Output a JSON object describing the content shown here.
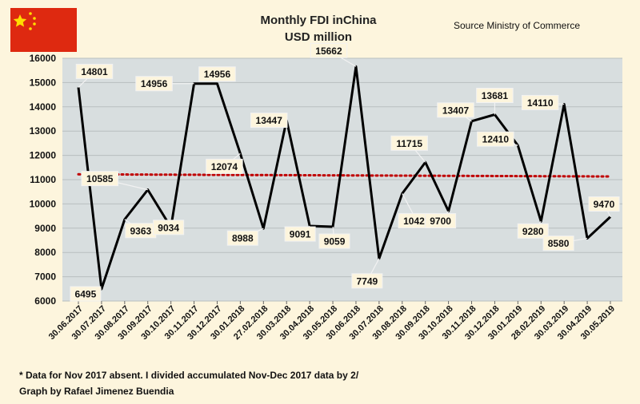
{
  "flag": {
    "background": "#de2910",
    "star_color": "#ffde00"
  },
  "colors": {
    "page_bg": "#fdf5dd",
    "plot_bg": "#d8dedf",
    "line": "#000000",
    "trend": "#c00000",
    "label_bg": "#fdf5dd"
  },
  "chart_data": {
    "type": "line",
    "title": "Monthly FDI inChina",
    "subtitle": "USD million",
    "source": "Source Ministry of Commerce",
    "ylim": [
      6000,
      16000
    ],
    "yticks": [
      6000,
      7000,
      8000,
      9000,
      10000,
      11000,
      12000,
      13000,
      14000,
      15000,
      16000
    ],
    "grid": "horizontal",
    "categories": [
      "30.06.2017",
      "30.07.2017",
      "30.08.2017",
      "30.09.2017",
      "30.10.2017",
      "30.11.2017",
      "30.12.2017",
      "30.01.2018",
      "27.02.2018",
      "30.03.2018",
      "30.04.2018",
      "30.05.2018",
      "30.06.2018",
      "30.07.2018",
      "30.08.2018",
      "30.09.2018",
      "30.10.2018",
      "30.11.2018",
      "30.12.2018",
      "30.01.2019",
      "28.02.2019",
      "30.03.2019",
      "30.04.2019",
      "30.05.2019"
    ],
    "values": [
      14801,
      6495,
      9363,
      10585,
      9034,
      14956,
      14956,
      12074,
      8988,
      13447,
      9091,
      9059,
      15662,
      7749,
      10427,
      11715,
      9700,
      13407,
      13681,
      12410,
      9280,
      14110,
      8580,
      9470
    ],
    "data_labels": [
      "14801",
      "6495",
      "9363",
      "10585",
      "9034",
      "14956",
      "14956",
      "12074",
      "8988",
      "13447",
      "9091",
      "9059",
      "15662",
      "7749",
      "10427",
      "11715",
      "9700",
      "13407",
      "13681",
      "12410",
      "9280",
      "14110",
      "8580",
      "9470"
    ],
    "trend": {
      "start": 11220,
      "end": 11130,
      "style": "dotted"
    }
  },
  "footnotes": [
    "* Data for Nov 2017 absent. I divided accumulated Nov-Dec 2017 data by 2/",
    "Graph by Rafael Jimenez Buendia"
  ]
}
